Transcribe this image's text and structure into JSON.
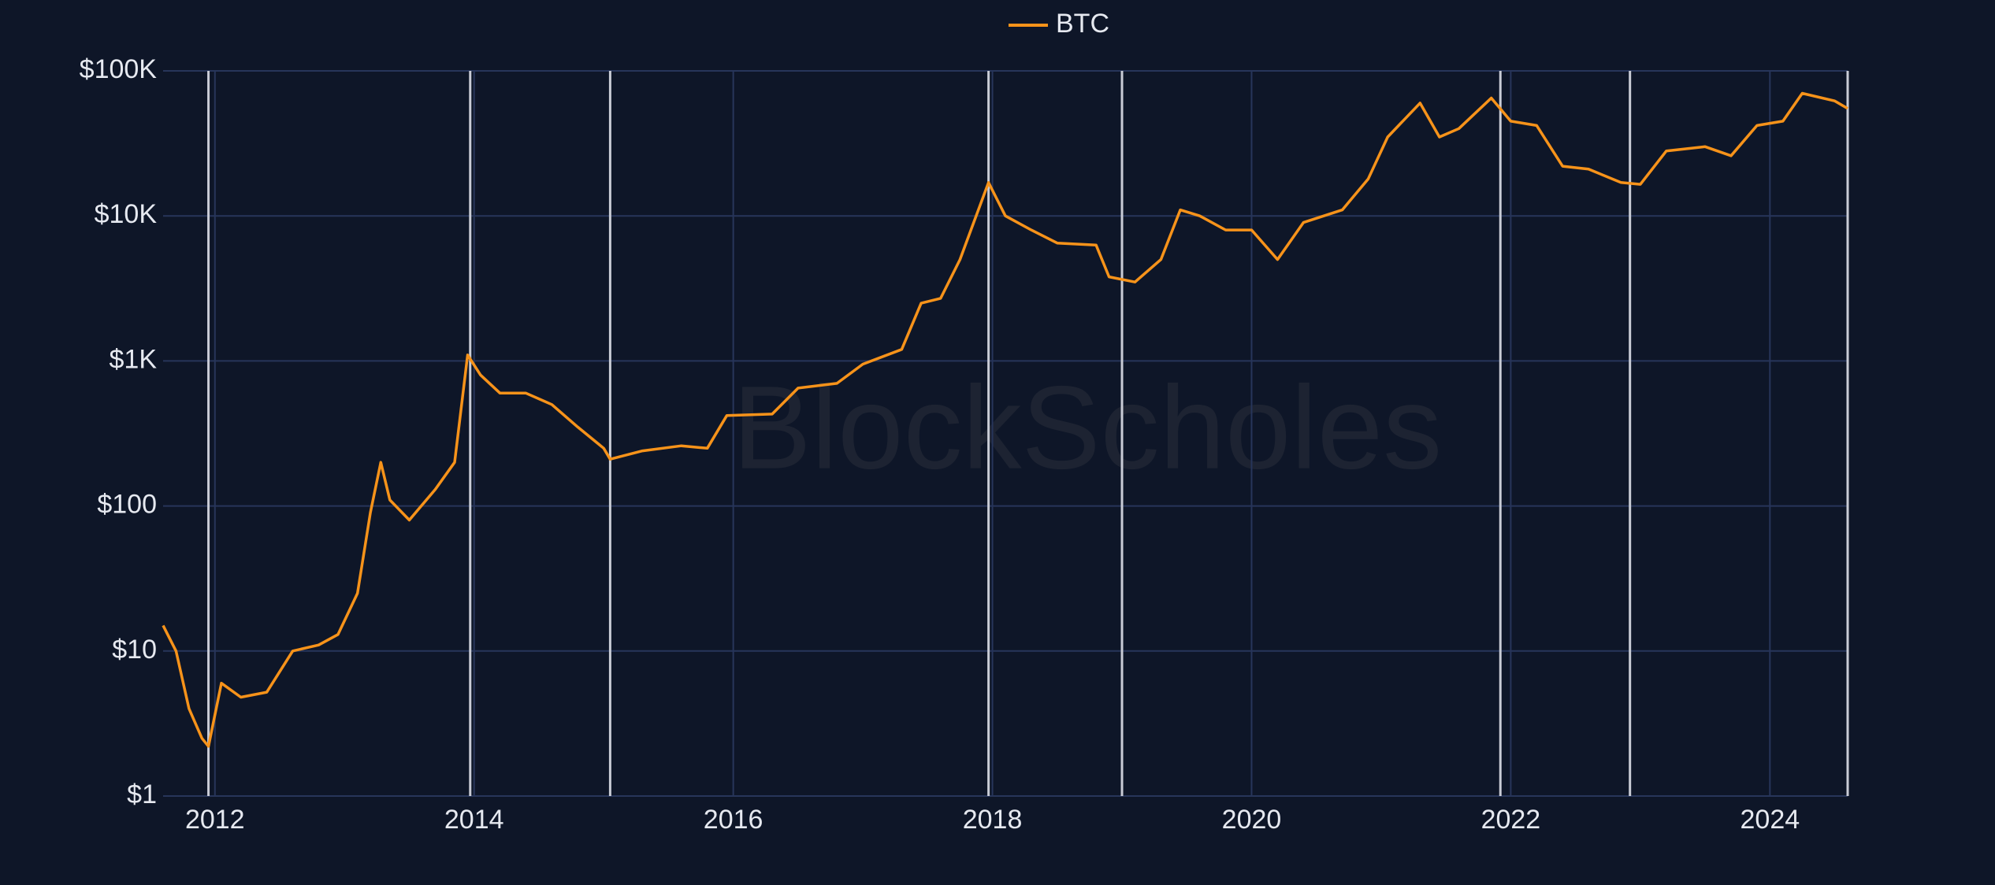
{
  "chart_data": {
    "type": "line",
    "watermark": "BlockScholes",
    "log_y": true,
    "grid": true,
    "legend": "top",
    "x": [
      2011.6,
      2011.7,
      2011.8,
      2011.9,
      2011.95,
      2012.05,
      2012.2,
      2012.4,
      2012.6,
      2012.8,
      2012.95,
      2013.1,
      2013.2,
      2013.28,
      2013.35,
      2013.5,
      2013.7,
      2013.85,
      2013.95,
      2014.05,
      2014.2,
      2014.4,
      2014.6,
      2014.8,
      2015.0,
      2015.05,
      2015.3,
      2015.6,
      2015.8,
      2015.95,
      2016.3,
      2016.5,
      2016.8,
      2017.0,
      2017.3,
      2017.45,
      2017.6,
      2017.75,
      2017.97,
      2018.1,
      2018.3,
      2018.5,
      2018.8,
      2018.9,
      2019.1,
      2019.3,
      2019.45,
      2019.6,
      2019.8,
      2020.0,
      2020.2,
      2020.4,
      2020.7,
      2020.9,
      2021.05,
      2021.3,
      2021.45,
      2021.6,
      2021.85,
      2022.0,
      2022.2,
      2022.4,
      2022.6,
      2022.85,
      2023.0,
      2023.2,
      2023.5,
      2023.7,
      2023.9,
      2024.1,
      2024.25,
      2024.5,
      2024.6
    ],
    "series": [
      {
        "name": "BTC",
        "color": "#f7931a",
        "values": [
          15,
          10,
          4,
          2.5,
          2.2,
          6,
          4.8,
          5.2,
          10,
          11,
          13,
          25,
          90,
          200,
          110,
          80,
          130,
          200,
          1100,
          800,
          600,
          600,
          500,
          350,
          250,
          210,
          240,
          260,
          250,
          420,
          430,
          650,
          700,
          950,
          1200,
          2500,
          2700,
          5000,
          17000,
          10000,
          8000,
          6500,
          6300,
          3800,
          3500,
          5000,
          11000,
          10000,
          8000,
          8000,
          5000,
          9000,
          11000,
          18000,
          35000,
          60000,
          35000,
          40000,
          65000,
          45000,
          42000,
          22000,
          21000,
          17000,
          16500,
          28000,
          30000,
          26000,
          42000,
          45000,
          70000,
          62000,
          55000
        ]
      }
    ],
    "event_lines": [
      2011.95,
      2013.97,
      2015.05,
      2017.97,
      2019.0,
      2021.92,
      2022.92,
      2024.6
    ],
    "event_line_color": "#c9ccd6",
    "xlim": [
      2011.6,
      2024.6
    ],
    "xticks": [
      2012,
      2014,
      2016,
      2018,
      2020,
      2022,
      2024
    ],
    "ylim": [
      1,
      100000
    ],
    "yticks": [
      {
        "value": 1,
        "label": "$1"
      },
      {
        "value": 10,
        "label": "$10"
      },
      {
        "value": 100,
        "label": "$100"
      },
      {
        "value": 1000,
        "label": "$1K"
      },
      {
        "value": 10000,
        "label": "$10K"
      },
      {
        "value": 100000,
        "label": "$100K"
      }
    ]
  }
}
